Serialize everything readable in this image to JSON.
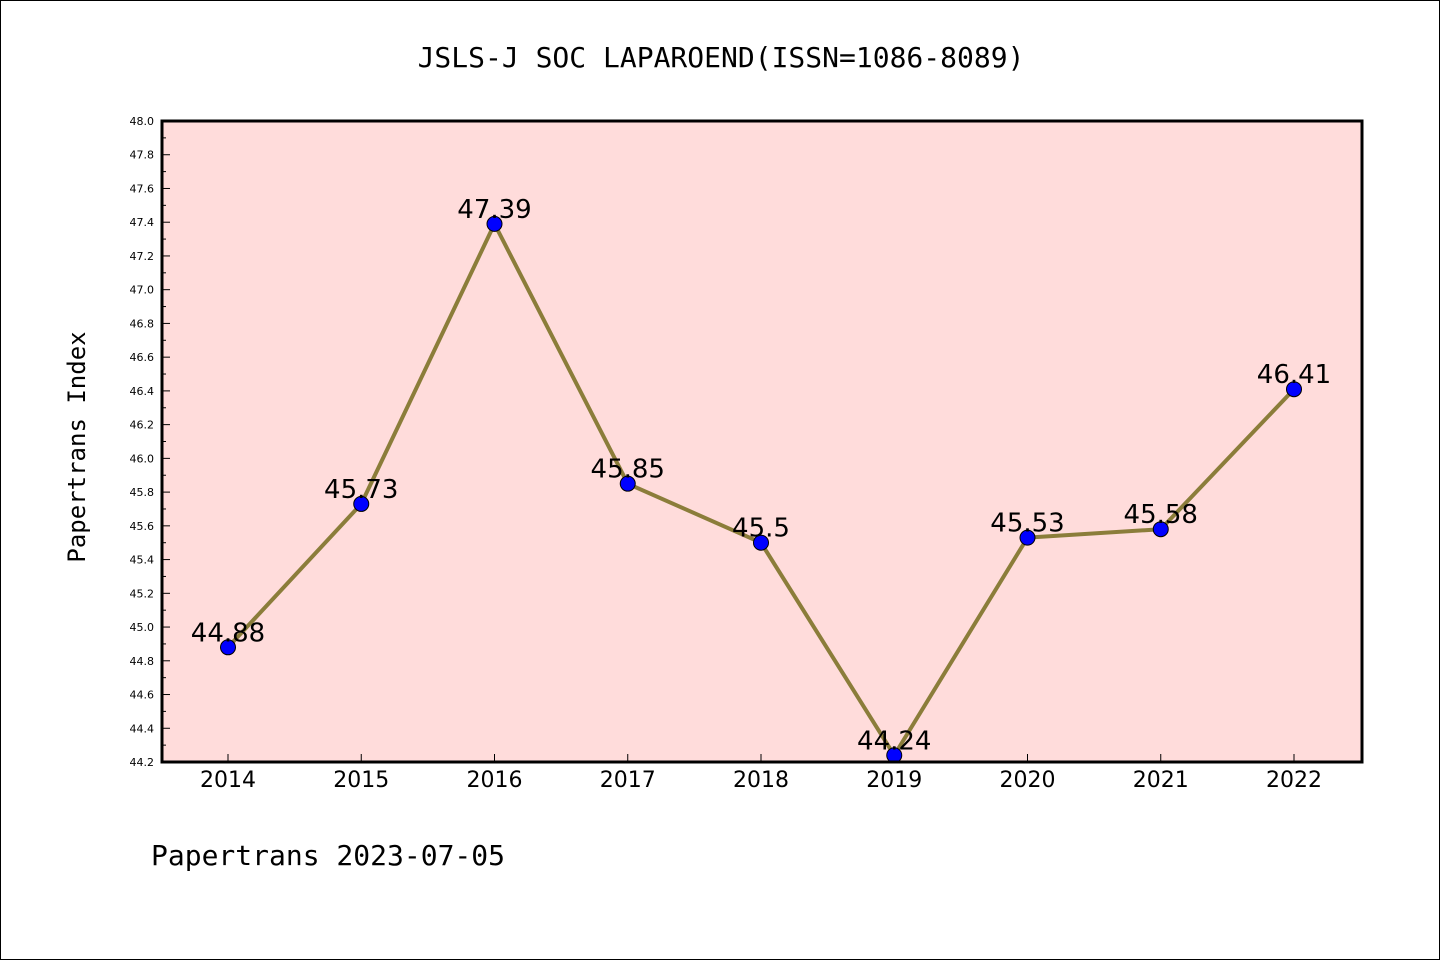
{
  "chart_data": {
    "type": "line",
    "title": "JSLS-J SOC LAPAROEND(ISSN=1086-8089)",
    "ylabel": "Papertrans Index",
    "xlabel": "",
    "footer": "Papertrans 2023-07-05",
    "x": [
      "2014",
      "2015",
      "2016",
      "2017",
      "2018",
      "2019",
      "2020",
      "2021",
      "2022"
    ],
    "values": [
      44.88,
      45.73,
      47.39,
      45.85,
      45.5,
      44.24,
      45.53,
      45.58,
      46.41
    ],
    "data_labels": [
      "44.88",
      "45.73",
      "47.39",
      "45.85",
      "45.5",
      "44.24",
      "45.53",
      "45.58",
      "46.41"
    ],
    "ylim": [
      44.2,
      48.0
    ],
    "yticks": [
      "44.2",
      "44.4",
      "44.6",
      "44.8",
      "45.0",
      "45.2",
      "45.4",
      "45.6",
      "45.8",
      "46.0",
      "46.2",
      "46.4",
      "46.6",
      "46.8",
      "47.0",
      "47.2",
      "47.4",
      "47.6",
      "47.8",
      "48.0"
    ],
    "grid": false,
    "colors": {
      "plot_background": "#ffdcdb",
      "line": "#8b7d3a",
      "marker": "#0000ff"
    }
  }
}
